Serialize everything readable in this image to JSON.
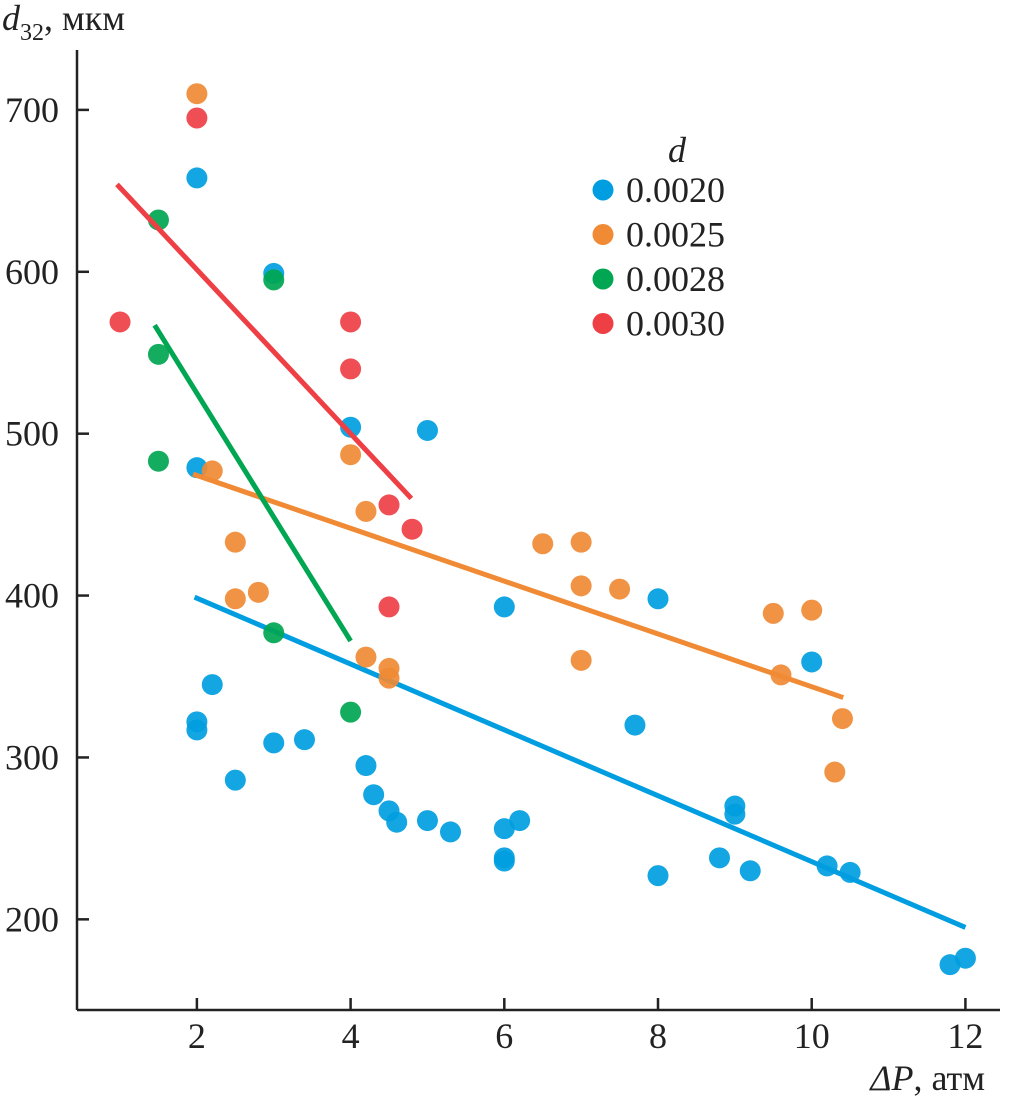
{
  "chart_data": {
    "type": "scatter",
    "title": "",
    "xlabel": {
      "symbol": "ΔP",
      "unit": ", атм"
    },
    "ylabel": {
      "symbol": "d",
      "subscript": "32",
      "unit": ", мкм"
    },
    "xlim": [
      0.44,
      12.45
    ],
    "ylim": [
      144,
      737
    ],
    "xticks": [
      2,
      4,
      6,
      8,
      10,
      12
    ],
    "yticks": [
      200,
      300,
      400,
      500,
      600,
      700
    ],
    "grid": false,
    "legend": {
      "title": "d",
      "placement": "top-right"
    },
    "series": [
      {
        "name": "0.0020",
        "color": "#009ee0",
        "points": [
          [
            2,
            658
          ],
          [
            3,
            599
          ],
          [
            2,
            479
          ],
          [
            4,
            504
          ],
          [
            5,
            502
          ],
          [
            2,
            322
          ],
          [
            2,
            317
          ],
          [
            2.2,
            345
          ],
          [
            2.5,
            286
          ],
          [
            3,
            309
          ],
          [
            3.4,
            311
          ],
          [
            4.2,
            295
          ],
          [
            4.3,
            277
          ],
          [
            4.5,
            267
          ],
          [
            4.6,
            260
          ],
          [
            5,
            261
          ],
          [
            5.3,
            254
          ],
          [
            6,
            256
          ],
          [
            6,
            238
          ],
          [
            6,
            236
          ],
          [
            6.2,
            261
          ],
          [
            6,
            393
          ],
          [
            8,
            398
          ],
          [
            7.7,
            320
          ],
          [
            8,
            227
          ],
          [
            8.8,
            238
          ],
          [
            9,
            270
          ],
          [
            9,
            265
          ],
          [
            9.2,
            230
          ],
          [
            10,
            359
          ],
          [
            10.2,
            233
          ],
          [
            10.5,
            229
          ],
          [
            11.8,
            172
          ],
          [
            12,
            176
          ]
        ],
        "fit": [
          [
            1.97,
            399
          ],
          [
            12,
            195
          ]
        ]
      },
      {
        "name": "0.0025",
        "color": "#f08a34",
        "points": [
          [
            2,
            710
          ],
          [
            2.2,
            477
          ],
          [
            4,
            487
          ],
          [
            2.5,
            433
          ],
          [
            2.5,
            398
          ],
          [
            2.8,
            402
          ],
          [
            4.2,
            452
          ],
          [
            4.2,
            362
          ],
          [
            4.5,
            355
          ],
          [
            4.5,
            349
          ],
          [
            6.5,
            432
          ],
          [
            7,
            433
          ],
          [
            7,
            406
          ],
          [
            7,
            360
          ],
          [
            7.5,
            404
          ],
          [
            9.5,
            389
          ],
          [
            10,
            391
          ],
          [
            9.6,
            351
          ],
          [
            10.4,
            324
          ],
          [
            10.3,
            291
          ]
        ],
        "fit": [
          [
            1.95,
            475
          ],
          [
            10.41,
            337
          ]
        ]
      },
      {
        "name": "0.0028",
        "color": "#00a651",
        "points": [
          [
            1.5,
            632
          ],
          [
            3,
            595
          ],
          [
            1.5,
            549
          ],
          [
            1.5,
            483
          ],
          [
            3,
            377
          ],
          [
            4,
            328
          ]
        ],
        "fit": [
          [
            1.45,
            567
          ],
          [
            4,
            372
          ]
        ]
      },
      {
        "name": "0.0030",
        "color": "#ee3f45",
        "points": [
          [
            2,
            695
          ],
          [
            1,
            569
          ],
          [
            4,
            569
          ],
          [
            4,
            540
          ],
          [
            4.5,
            456
          ],
          [
            4.8,
            441
          ],
          [
            4.5,
            393
          ]
        ],
        "fit": [
          [
            0.96,
            654
          ],
          [
            4.79,
            460
          ]
        ]
      }
    ]
  }
}
